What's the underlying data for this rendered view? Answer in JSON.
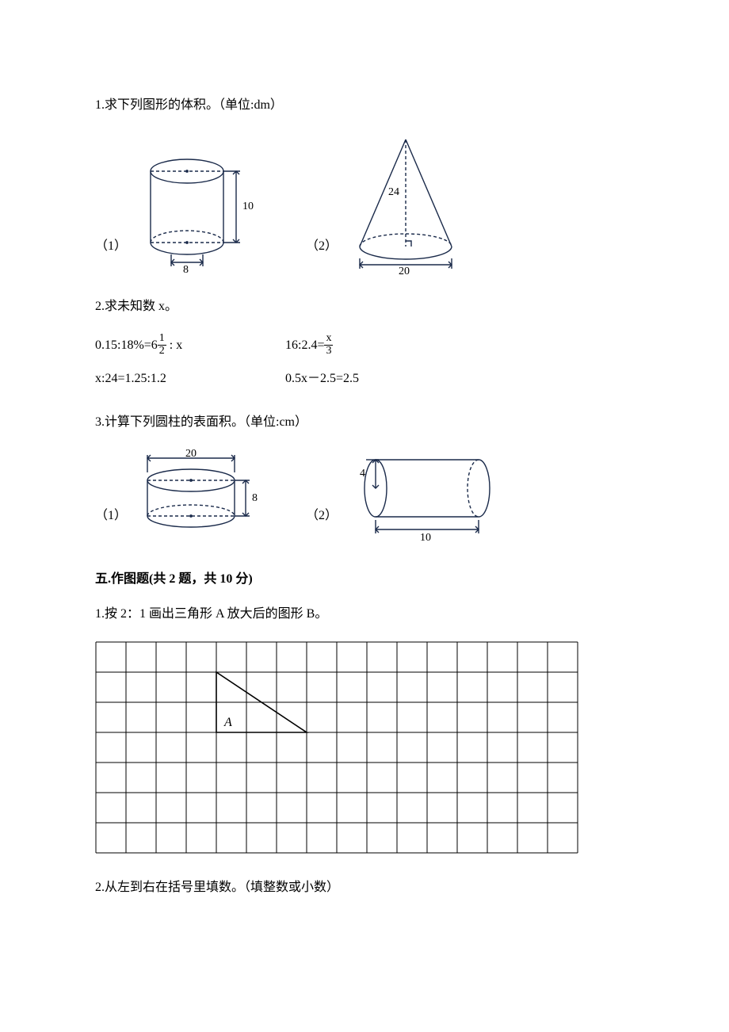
{
  "q1": {
    "text": "1.求下列图形的体积。（单位:dm）",
    "labels": {
      "one": "（1）",
      "two": "（2）"
    },
    "cylinder": {
      "height": "10",
      "diameter": "8"
    },
    "cone": {
      "height": "24",
      "diameter": "20"
    }
  },
  "q2": {
    "text": "2.求未知数 x。",
    "eq1_prefix": "0.15:18%=6",
    "eq1_frac_n": "1",
    "eq1_frac_d": "2",
    "eq1_suffix": " : x",
    "eq2_prefix": "16:2.4=",
    "eq2_frac_n": "x",
    "eq2_frac_d": "3",
    "eq3": "x:24=1.25:1.2",
    "eq4": "0.5x－2.5=2.5"
  },
  "q3": {
    "text": "3.计算下列圆柱的表面积。（单位:cm）",
    "labels": {
      "one": "（1）",
      "two": "（2）"
    },
    "cyl1": {
      "diameter": "20",
      "height": "8"
    },
    "cyl2": {
      "radius": "4",
      "length": "10"
    }
  },
  "section5": {
    "title": "五.作图题(共 2 题，共 10 分)",
    "q1": "1.按 2：1 画出三角形 A 放大后的图形 B。",
    "triangle_label": "A",
    "q2": "2.从左到右在括号里填数。（填整数或小数）",
    "grid": {
      "cols": 16,
      "rows": 7,
      "cell": 38
    }
  },
  "colors": {
    "stroke": "#1a2a4a",
    "text": "#000000",
    "bg": "#ffffff"
  }
}
